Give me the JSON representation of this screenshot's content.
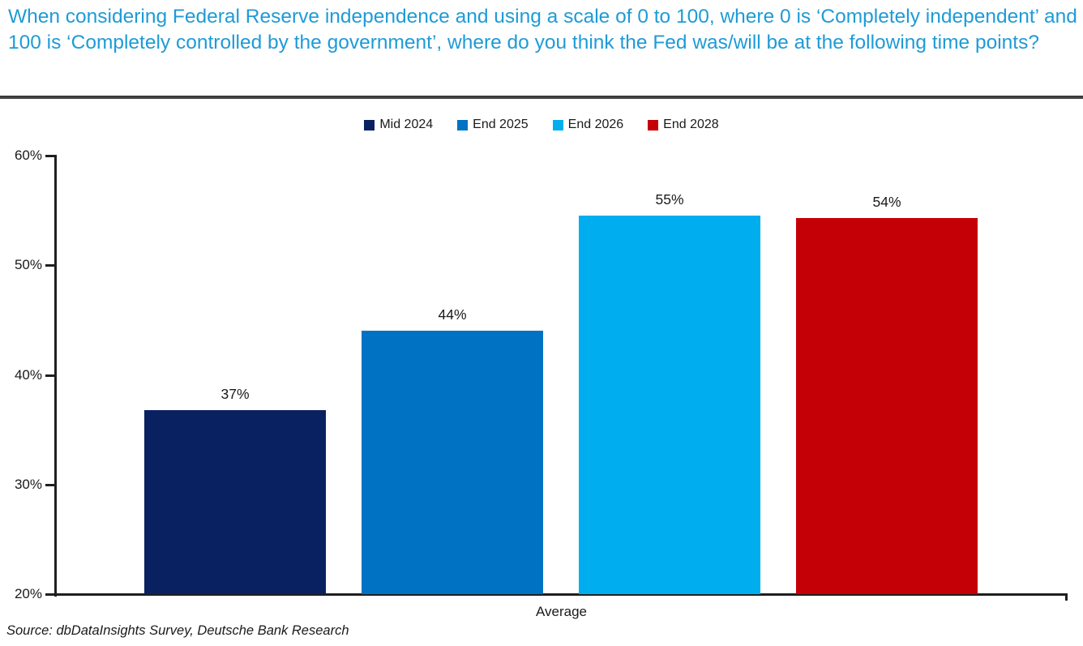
{
  "header": {
    "title": "When considering Federal Reserve independence and using a scale of 0 to 100, where 0 is ‘Completely independent’ and 100 is ‘Completely controlled by the government’, where do you think the Fed was/will be at the following time points?"
  },
  "chart_data": {
    "type": "bar",
    "title": "When considering Federal Reserve independence and using a scale of 0 to 100, where 0 is ‘Completely independent’ and 100 is ‘Completely controlled by the government’, where do you think the Fed was/will be at the following time points?",
    "x_categories": [
      "Average"
    ],
    "series": [
      {
        "name": "Mid 2024",
        "value": 37,
        "value_label": "37%",
        "color": "#0a2161",
        "plot_value": 36.8
      },
      {
        "name": "End 2025",
        "value": 44,
        "value_label": "44%",
        "color": "#0072c3",
        "plot_value": 44.0
      },
      {
        "name": "End 2026",
        "value": 55,
        "value_label": "55%",
        "color": "#00aeef",
        "plot_value": 54.5
      },
      {
        "name": "End 2028",
        "value": 54,
        "value_label": "54%",
        "color": "#c40006",
        "plot_value": 54.3
      }
    ],
    "xlabel": "Average",
    "ylabel": "",
    "ylim": [
      20,
      60
    ],
    "ytick_values": [
      20,
      30,
      40,
      50,
      60
    ],
    "ytick_labels": [
      "20%",
      "30%",
      "40%",
      "50%",
      "60%"
    ],
    "grid": false,
    "legend_position": "top"
  },
  "source": {
    "text": "Source: dbDataInsights Survey, Deutsche Bank Research"
  },
  "colors": {
    "title_blue": "#1e9bd7",
    "divider": "#444444",
    "axis": "#1f1f1f",
    "text": "#1a1a1a"
  }
}
